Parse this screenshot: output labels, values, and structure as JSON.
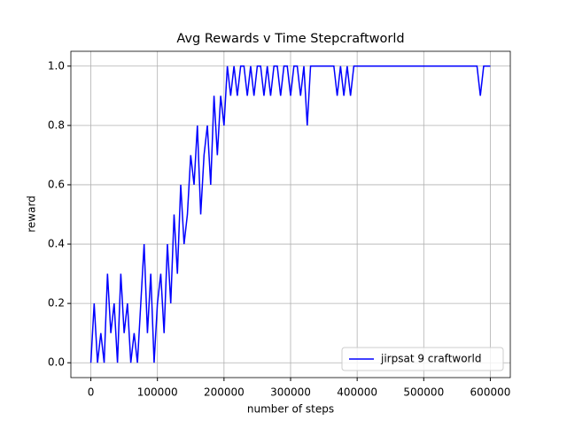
{
  "chart_data": {
    "type": "line",
    "title": "Avg Rewards v Time Stepcraftworld",
    "xlabel": "number of steps",
    "ylabel": "reward",
    "x": [
      0,
      5000,
      10000,
      15000,
      20000,
      25000,
      30000,
      35000,
      40000,
      45000,
      50000,
      55000,
      60000,
      65000,
      70000,
      75000,
      80000,
      85000,
      90000,
      95000,
      100000,
      105000,
      110000,
      115000,
      120000,
      125000,
      130000,
      135000,
      140000,
      145000,
      150000,
      155000,
      160000,
      165000,
      170000,
      175000,
      180000,
      185000,
      190000,
      195000,
      200000,
      205000,
      210000,
      215000,
      220000,
      225000,
      230000,
      235000,
      240000,
      245000,
      250000,
      255000,
      260000,
      265000,
      270000,
      275000,
      280000,
      285000,
      290000,
      295000,
      300000,
      305000,
      310000,
      315000,
      320000,
      325000,
      330000,
      335000,
      340000,
      345000,
      350000,
      355000,
      360000,
      365000,
      370000,
      375000,
      380000,
      385000,
      390000,
      395000,
      400000,
      405000,
      410000,
      415000,
      420000,
      425000,
      430000,
      435000,
      440000,
      445000,
      450000,
      455000,
      460000,
      465000,
      470000,
      475000,
      480000,
      485000,
      490000,
      495000,
      500000,
      505000,
      510000,
      515000,
      520000,
      525000,
      530000,
      535000,
      540000,
      545000,
      550000,
      555000,
      560000,
      565000,
      570000,
      575000,
      580000,
      585000,
      590000,
      595000,
      600000
    ],
    "series": [
      {
        "name": "jirpsat 9 craftworld",
        "color": "#0000ff",
        "values": [
          0,
          0.2,
          0,
          0.1,
          0,
          0.3,
          0.1,
          0.2,
          0,
          0.3,
          0.1,
          0.2,
          0,
          0.1,
          0,
          0.2,
          0.4,
          0.1,
          0.3,
          0,
          0.2,
          0.3,
          0.1,
          0.4,
          0.2,
          0.5,
          0.3,
          0.6,
          0.4,
          0.5,
          0.7,
          0.6,
          0.8,
          0.5,
          0.7,
          0.8,
          0.6,
          0.9,
          0.7,
          0.9,
          0.8,
          1.0,
          0.9,
          1.0,
          0.9,
          1.0,
          1.0,
          0.9,
          1.0,
          0.9,
          1.0,
          1.0,
          0.9,
          1.0,
          0.9,
          1.0,
          1.0,
          0.9,
          1.0,
          1.0,
          0.9,
          1.0,
          1.0,
          0.9,
          1.0,
          0.8,
          1.0,
          1,
          1,
          1,
          1,
          1,
          1,
          1,
          0.9,
          1,
          0.9,
          1,
          0.9,
          1,
          1,
          1,
          1,
          1,
          1,
          1,
          1,
          1,
          1,
          1,
          1,
          1,
          1,
          1,
          1,
          1,
          1,
          1,
          1,
          1,
          1,
          1,
          1,
          1,
          1,
          1,
          1,
          1,
          1,
          1,
          1,
          1,
          1,
          1,
          1,
          1,
          1,
          0.9,
          1,
          1,
          1
        ]
      }
    ],
    "xlim": [
      -30000,
      630000
    ],
    "ylim": [
      -0.05,
      1.05
    ],
    "xticks": [
      0,
      100000,
      200000,
      300000,
      400000,
      500000,
      600000
    ],
    "yticks": [
      {
        "value": 0,
        "label": "0.0"
      },
      {
        "value": 0.2,
        "label": "0.2"
      },
      {
        "value": 0.4,
        "label": "0.4"
      },
      {
        "value": 0.6,
        "label": "0.6"
      },
      {
        "value": 0.8,
        "label": "0.8"
      },
      {
        "value": 1,
        "label": "1.0"
      }
    ],
    "grid": true,
    "legend": "lower right"
  }
}
